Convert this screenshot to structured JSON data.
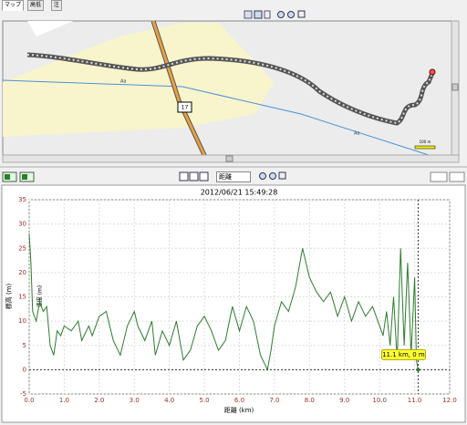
{
  "tabs": [
    "マップ",
    "高低",
    "注"
  ],
  "map": {
    "road_labels": [
      "Aa",
      "Aa"
    ],
    "route_number": "17",
    "scale": "100 m"
  },
  "toolbar": {
    "dropdown": "距離"
  },
  "chart_data": {
    "type": "line",
    "title": "2012/06/21 15:49:28",
    "x_label": "距離 (km)",
    "y_label": "標高 (m)",
    "secondary_label": "速度 (m)",
    "x": [
      0,
      0.05,
      0.1,
      0.2,
      0.3,
      0.4,
      0.5,
      0.6,
      0.7,
      0.8,
      0.9,
      1.0,
      1.2,
      1.4,
      1.5,
      1.7,
      1.8,
      2.0,
      2.2,
      2.4,
      2.6,
      2.8,
      3.0,
      3.1,
      3.3,
      3.5,
      3.6,
      3.8,
      4.0,
      4.2,
      4.4,
      4.6,
      4.8,
      5.0,
      5.2,
      5.4,
      5.6,
      5.8,
      6.0,
      6.2,
      6.4,
      6.6,
      6.8,
      6.9,
      7.0,
      7.2,
      7.4,
      7.6,
      7.8,
      8.0,
      8.2,
      8.4,
      8.6,
      8.8,
      9.0,
      9.2,
      9.4,
      9.6,
      9.8,
      10.0,
      10.1,
      10.2,
      10.3,
      10.4,
      10.5,
      10.6,
      10.7,
      10.8,
      10.9,
      11.0,
      11.05,
      11.1
    ],
    "series": [
      {
        "name": "標高",
        "color": "#2e7d2e",
        "values": [
          28,
          22,
          12,
          10,
          14,
          12,
          13,
          5,
          3,
          8,
          7,
          9,
          8,
          10,
          6,
          9,
          7,
          11,
          12,
          6,
          3,
          9,
          12,
          9,
          6,
          10,
          3,
          8,
          5,
          10,
          2,
          4,
          9,
          11,
          8,
          4,
          6,
          13,
          8,
          13,
          10,
          3,
          0,
          4,
          9,
          14,
          12,
          17,
          25,
          19,
          16,
          14,
          16,
          11,
          15,
          10,
          14,
          11,
          13,
          9,
          7,
          12,
          5,
          15,
          2,
          25,
          5,
          22,
          3,
          19,
          2,
          0
        ]
      }
    ],
    "xlim": [
      0,
      12
    ],
    "xticks": [
      {
        "value": 0,
        "label": "0.0"
      },
      {
        "value": 1,
        "label": "1.0"
      },
      {
        "value": 2,
        "label": "2.0"
      },
      {
        "value": 3,
        "label": "3.0"
      },
      {
        "value": 4,
        "label": "4.0"
      },
      {
        "value": 5,
        "label": "5.0"
      },
      {
        "value": 6,
        "label": "6.0"
      },
      {
        "value": 7,
        "label": "7.0"
      },
      {
        "value": 8,
        "label": "8.0"
      },
      {
        "value": 9,
        "label": "9.0"
      },
      {
        "value": 10,
        "label": "10.0"
      },
      {
        "value": 11,
        "label": "11.0"
      },
      {
        "value": 12,
        "label": "12.0"
      }
    ],
    "ylim": [
      -5,
      35
    ],
    "yticks": [
      -5,
      0,
      5,
      10,
      15,
      20,
      25,
      30,
      35
    ],
    "grid": true,
    "cursor": {
      "x": 11.1,
      "y": 0,
      "label": "11.1 km, 0 m"
    }
  }
}
